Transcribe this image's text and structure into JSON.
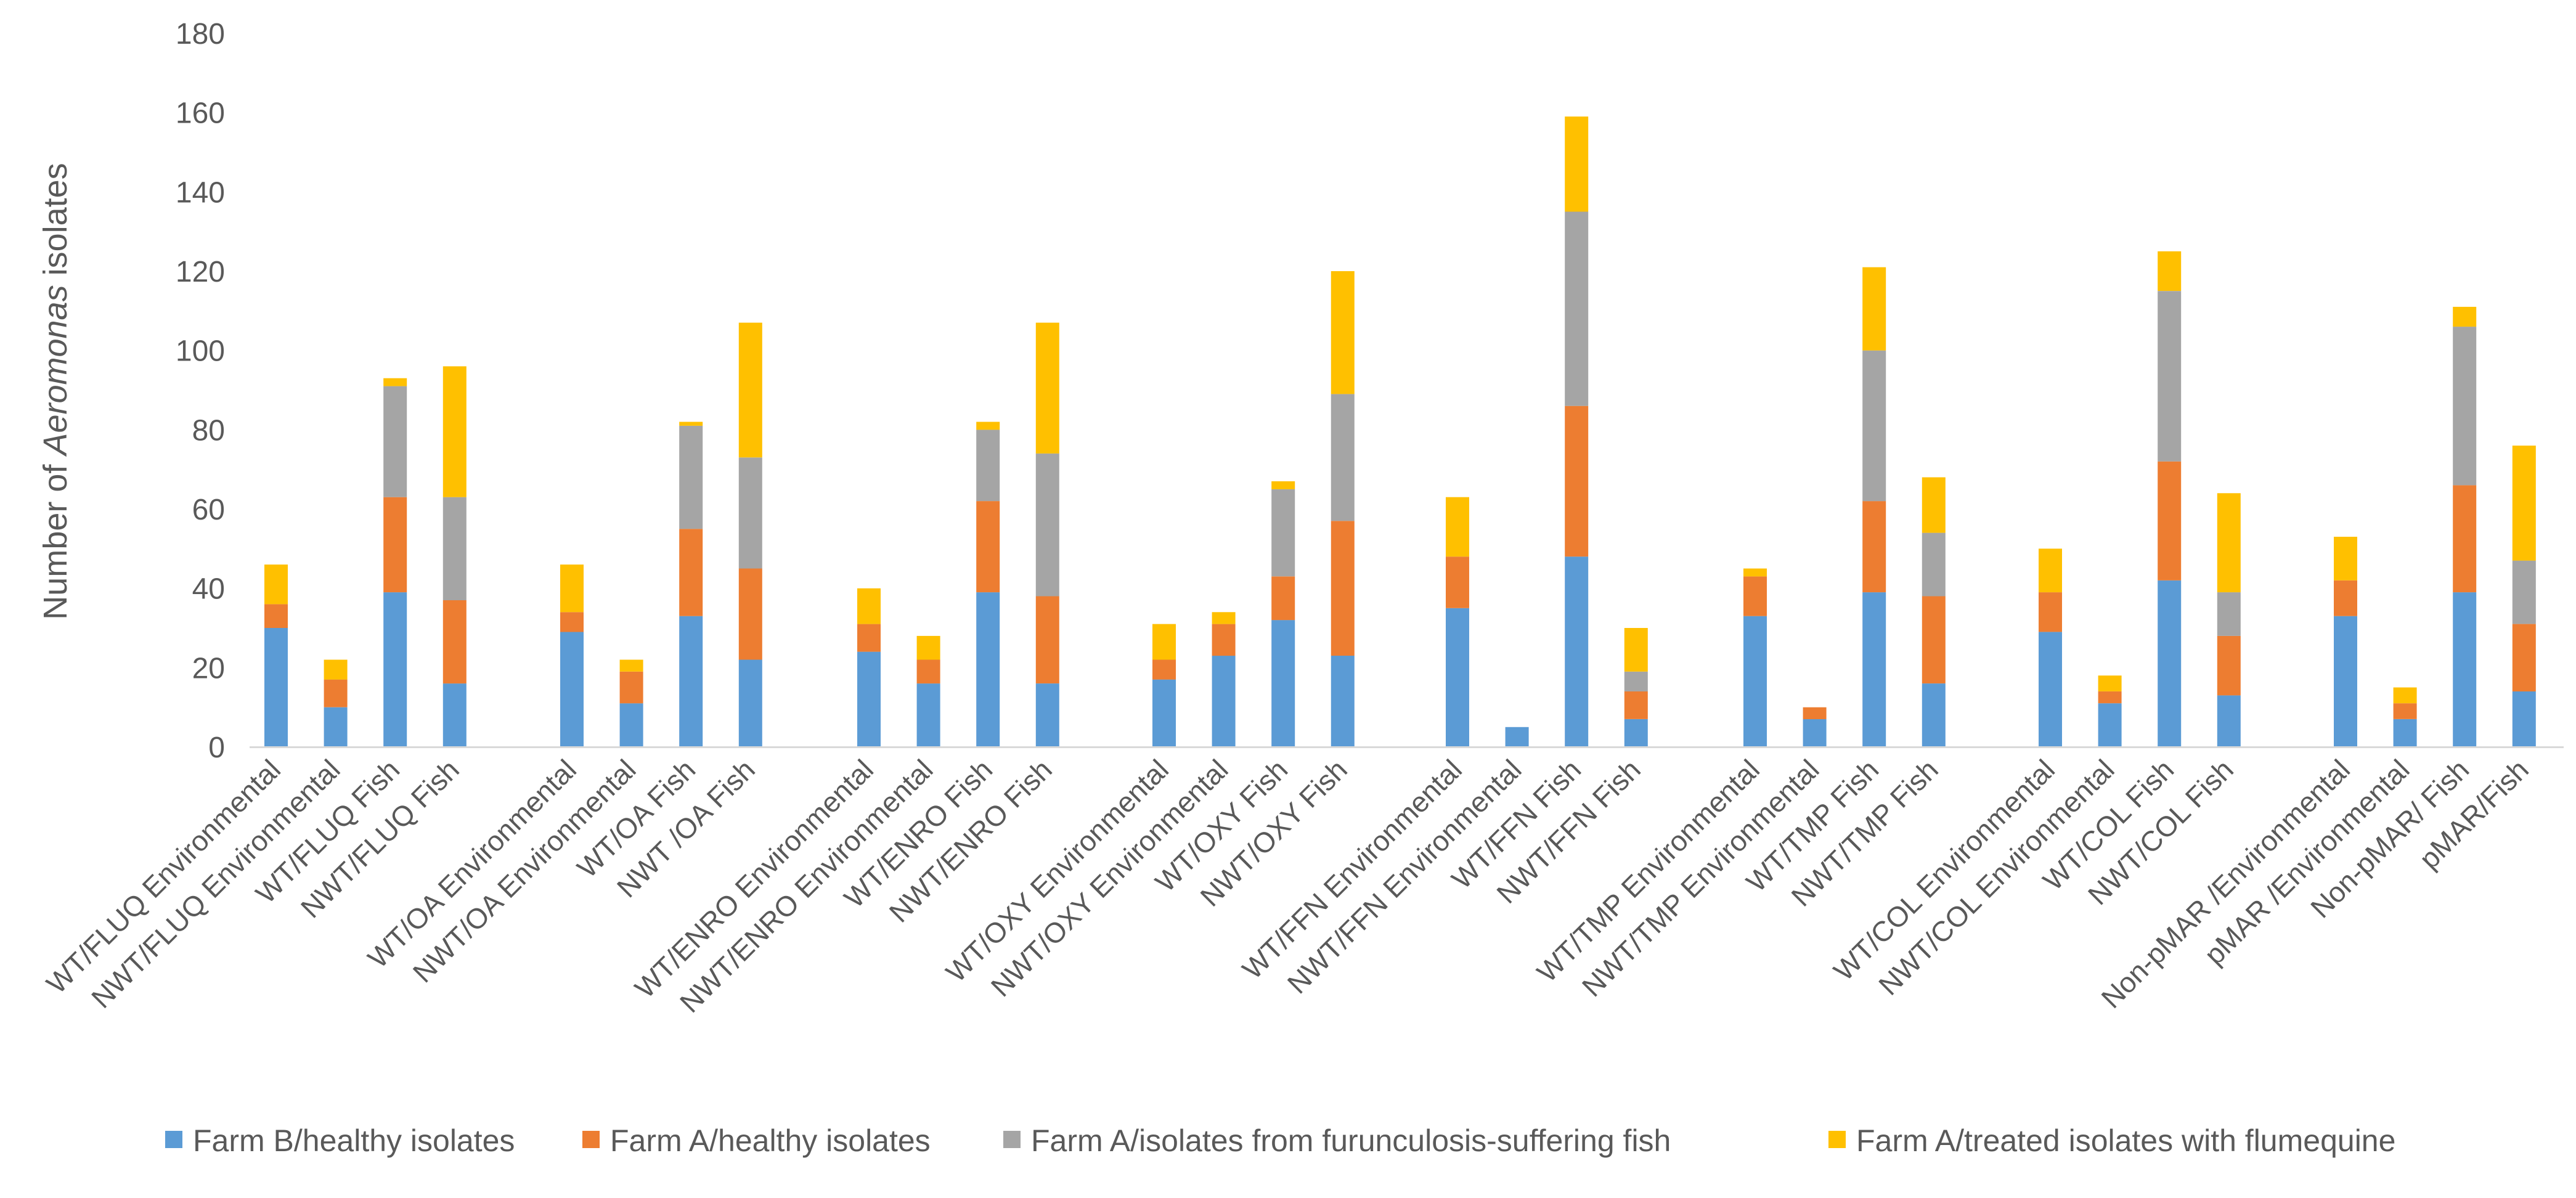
{
  "chart_data": {
    "type": "bar",
    "stacked": true,
    "title": "",
    "xlabel": "",
    "ylabel": {
      "prefix": "Number of ",
      "italic": "Aeromonas",
      "suffix": " isolates"
    },
    "ylim": [
      0,
      180
    ],
    "yticks": [
      0,
      20,
      40,
      60,
      80,
      100,
      120,
      140,
      160,
      180
    ],
    "grid": false,
    "legend_position": "bottom",
    "categories": [
      "WT/FLUQ Environmental",
      "NWT/FLUQ Environmental",
      "WT/FLUQ  Fish",
      "NWT/FLUQ Fish",
      "WT/OA  Environmental",
      "NWT/OA Environmental",
      "WT/OA  Fish",
      "NWT /OA  Fish",
      "WT/ENRO  Environmental",
      "NWT/ENRO Environmental",
      "WT/ENRO Fish",
      "NWT/ENRO Fish",
      "WT/OXY Environmental",
      "NWT/OXY Environmental",
      "WT/OXY  Fish",
      "NWT/OXY  Fish",
      "WT/FFN Environmental",
      "NWT/FFN Environmental",
      "WT/FFN Fish",
      "NWT/FFN Fish",
      "WT/TMP Environmental",
      "NWT/TMP Environmental",
      "WT/TMP Fish",
      "NWT/TMP Fish",
      "WT/COL Environmental",
      "NWT/COL Environmental",
      "WT/COL  Fish",
      "NWT/COL  Fish",
      "Non-pMAR /Environmental",
      "pMAR /Environmental",
      "Non-pMAR/  Fish",
      "pMAR/Fish"
    ],
    "series": [
      {
        "name": "Farm B/healthy isolates",
        "color": "#5B9BD5",
        "values": [
          30,
          10,
          39,
          16,
          29,
          11,
          33,
          22,
          24,
          16,
          39,
          16,
          17,
          23,
          32,
          23,
          35,
          5,
          48,
          7,
          33,
          7,
          39,
          16,
          29,
          11,
          42,
          13,
          33,
          7,
          39,
          14
        ]
      },
      {
        "name": "Farm A/healthy isolates",
        "color": "#ED7D31",
        "values": [
          6,
          7,
          24,
          21,
          5,
          8,
          22,
          23,
          7,
          6,
          23,
          22,
          5,
          8,
          11,
          34,
          13,
          0,
          38,
          7,
          10,
          3,
          23,
          22,
          10,
          3,
          30,
          15,
          9,
          4,
          27,
          17
        ]
      },
      {
        "name": "Farm A/isolates from furunculosis-suffering fish",
        "color": "#A5A5A5",
        "values": [
          0,
          0,
          28,
          26,
          0,
          0,
          26,
          28,
          0,
          0,
          18,
          36,
          0,
          0,
          22,
          32,
          0,
          0,
          49,
          5,
          0,
          0,
          38,
          16,
          0,
          0,
          43,
          11,
          0,
          0,
          40,
          16
        ]
      },
      {
        "name": "Farm A/treated isolates with flumequine",
        "color": "#FFC000",
        "values": [
          10,
          5,
          2,
          33,
          12,
          3,
          1,
          34,
          9,
          6,
          2,
          33,
          9,
          3,
          2,
          31,
          15,
          0,
          24,
          11,
          2,
          0,
          21,
          14,
          11,
          4,
          10,
          25,
          11,
          4,
          5,
          29
        ]
      }
    ]
  }
}
